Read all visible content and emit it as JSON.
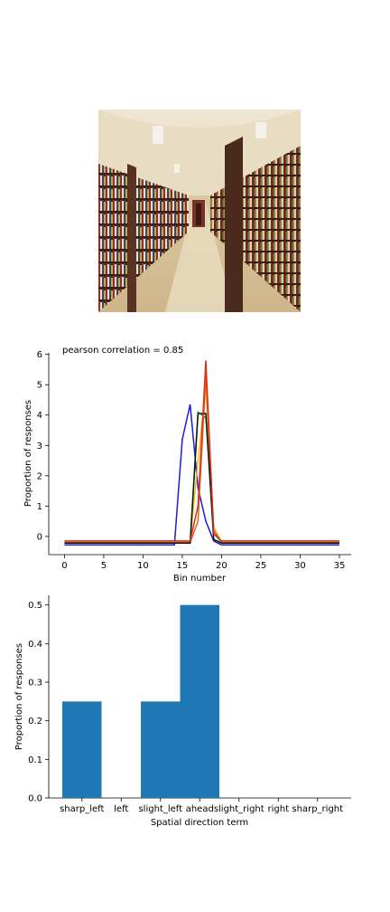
{
  "image": {
    "description_icon": "library-corridor-photo"
  },
  "chart_data": [
    {
      "type": "line",
      "annotation": "pearson correlation = 0.85",
      "xlabel": "Bin number",
      "ylabel": "Proportion of responses",
      "xlim": [
        -2,
        36.5
      ],
      "ylim": [
        -0.6,
        6.05
      ],
      "xticks": [
        0,
        5,
        10,
        15,
        20,
        25,
        30,
        35
      ],
      "yticks": [
        0,
        1,
        2,
        3,
        4,
        5,
        6
      ],
      "grid": false,
      "series": [
        {
          "color": "#1a1adc",
          "x": [
            0,
            14,
            15,
            16,
            17,
            18,
            19,
            20,
            35
          ],
          "y": [
            -0.28,
            -0.28,
            3.2,
            4.35,
            1.6,
            0.5,
            -0.15,
            -0.28,
            -0.28
          ]
        },
        {
          "color": "#00cc44",
          "x": [
            0,
            16,
            17,
            18,
            19,
            20,
            35
          ],
          "y": [
            -0.2,
            -0.2,
            4.1,
            3.9,
            0.1,
            -0.2,
            -0.2
          ]
        },
        {
          "color": "#f0c020",
          "x": [
            0,
            16,
            17,
            18,
            19,
            20,
            35
          ],
          "y": [
            -0.18,
            -0.18,
            2.5,
            4.9,
            0.3,
            -0.18,
            -0.18
          ]
        },
        {
          "color": "#e8601a",
          "x": [
            0,
            16,
            17,
            18,
            19,
            20,
            35
          ],
          "y": [
            -0.2,
            -0.2,
            0.5,
            5.3,
            0.2,
            -0.2,
            -0.2
          ]
        },
        {
          "color": "#111111",
          "x": [
            0,
            16,
            17,
            18,
            19,
            20,
            35
          ],
          "y": [
            -0.22,
            -0.22,
            4.05,
            4.05,
            -0.1,
            -0.22,
            -0.22
          ]
        },
        {
          "color": "#d83020",
          "x": [
            0,
            16,
            17,
            18,
            19,
            20,
            35
          ],
          "y": [
            -0.15,
            -0.15,
            1.0,
            5.8,
            0.1,
            -0.15,
            -0.15
          ]
        }
      ]
    },
    {
      "type": "bar",
      "categories": [
        "sharp_left",
        "left",
        "slight_left",
        "ahead",
        "slight_right",
        "right",
        "sharp_right"
      ],
      "values": [
        0.25,
        0,
        0.25,
        0.5,
        0,
        0,
        0
      ],
      "xlabel": "Spatial direction term",
      "ylabel": "Proportion of responses",
      "ylim": [
        0,
        0.525
      ],
      "yticks": [
        "0.0",
        "0.1",
        "0.2",
        "0.3",
        "0.4",
        "0.5"
      ],
      "bar_color": "#1f77b4",
      "grid": false
    }
  ]
}
